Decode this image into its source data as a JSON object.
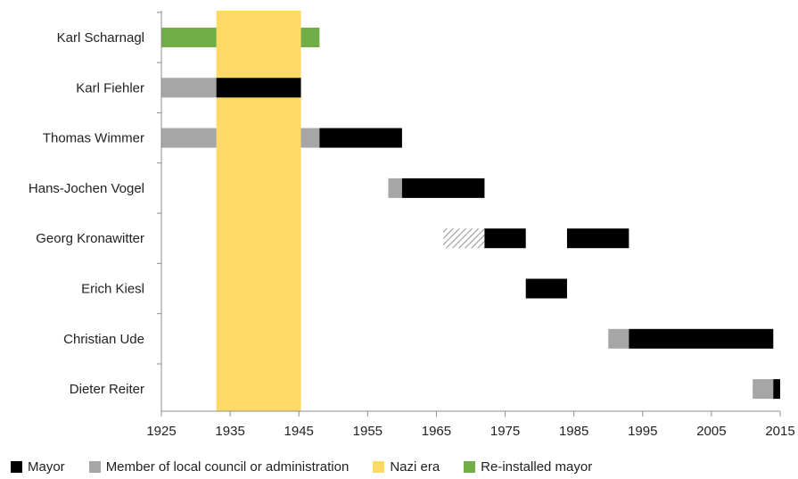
{
  "chart_data": {
    "type": "bar",
    "orientation": "horizontal-timeline",
    "people": [
      "Karl Scharnagl",
      "Karl Fiehler",
      "Thomas Wimmer",
      "Hans-Jochen Vogel",
      "Georg Kronawitter",
      "Erich Kiesl",
      "Christian Ude",
      "Dieter Reiter"
    ],
    "x_ticks": [
      1925,
      1935,
      1945,
      1955,
      1965,
      1975,
      1985,
      1995,
      2005,
      2015
    ],
    "xlim": [
      1925,
      2015
    ],
    "shaded_period": {
      "label": "Nazi era",
      "start": 1933,
      "end": 1945.3,
      "color": "#FFD966"
    },
    "segments": [
      {
        "person": "Karl Scharnagl",
        "category": "reinstalled",
        "start": 1925,
        "end": 1933
      },
      {
        "person": "Karl Scharnagl",
        "category": "reinstalled",
        "start": 1945.3,
        "end": 1948
      },
      {
        "person": "Karl Fiehler",
        "category": "council",
        "start": 1925,
        "end": 1933
      },
      {
        "person": "Karl Fiehler",
        "category": "mayor",
        "start": 1933,
        "end": 1945.3
      },
      {
        "person": "Thomas Wimmer",
        "category": "council",
        "start": 1925,
        "end": 1933
      },
      {
        "person": "Thomas Wimmer",
        "category": "council",
        "start": 1945.3,
        "end": 1948
      },
      {
        "person": "Thomas Wimmer",
        "category": "mayor",
        "start": 1948,
        "end": 1960
      },
      {
        "person": "Hans-Jochen Vogel",
        "category": "council",
        "start": 1958,
        "end": 1960
      },
      {
        "person": "Hans-Jochen Vogel",
        "category": "mayor",
        "start": 1960,
        "end": 1972
      },
      {
        "person": "Georg Kronawitter",
        "category": "hatched",
        "start": 1966,
        "end": 1972
      },
      {
        "person": "Georg Kronawitter",
        "category": "mayor",
        "start": 1972,
        "end": 1978
      },
      {
        "person": "Georg Kronawitter",
        "category": "mayor",
        "start": 1984,
        "end": 1993
      },
      {
        "person": "Erich Kiesl",
        "category": "mayor",
        "start": 1978,
        "end": 1984
      },
      {
        "person": "Christian Ude",
        "category": "council",
        "start": 1990,
        "end": 1993
      },
      {
        "person": "Christian Ude",
        "category": "mayor",
        "start": 1993,
        "end": 2014
      },
      {
        "person": "Dieter Reiter",
        "category": "council",
        "start": 2011,
        "end": 2014
      },
      {
        "person": "Dieter Reiter",
        "category": "mayor",
        "start": 2014,
        "end": 2015
      }
    ],
    "colors": {
      "mayor": "#000000",
      "council": "#A6A6A6",
      "reinstalled": "#70AD47",
      "hatched": "#BFBFBF"
    },
    "legend": [
      {
        "key": "mayor",
        "label": "Mayor",
        "color": "#000000"
      },
      {
        "key": "council",
        "label": "Member of local council or administration",
        "color": "#A6A6A6"
      },
      {
        "key": "nazi",
        "label": "Nazi era",
        "color": "#FFD966"
      },
      {
        "key": "reinstalled",
        "label": "Re-installed mayor",
        "color": "#70AD47"
      }
    ],
    "legend_position": "bottom",
    "grid": false
  }
}
